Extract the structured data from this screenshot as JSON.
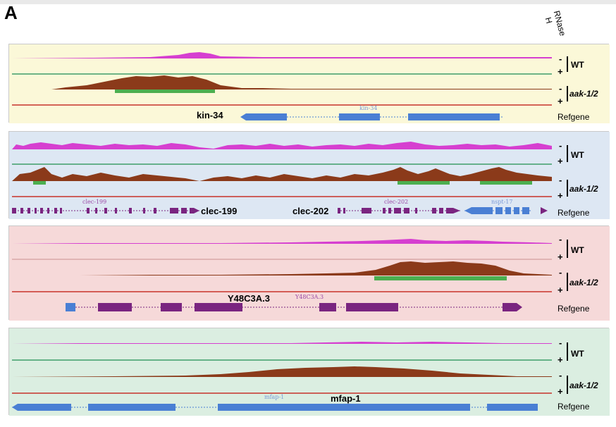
{
  "figure": {
    "panel_letter": "A",
    "column_header": "RNase H",
    "column_header_lines": [
      "RNase",
      "H"
    ],
    "colors": {
      "signal_magenta": "#d63fd0",
      "signal_green": "#3f9d6a",
      "signal_brown": "#8b3a1a",
      "signal_red": "#c8322a",
      "peak_green": "#4caf50",
      "gene_blue": "#4a7fd4",
      "gene_purple": "#7a2580"
    }
  },
  "row_labels": {
    "wt": "WT",
    "mutant": "aak-1/2",
    "minus": "-",
    "plus": "+",
    "refgene": "Refgene"
  },
  "panels": [
    {
      "id": "kin-34",
      "background": "#fbf8d8",
      "gene_labels": [
        {
          "text": "kin-34",
          "bold": true
        }
      ],
      "small_labels": [
        {
          "text": "kin-34"
        }
      ]
    },
    {
      "id": "clec",
      "background": "#dde7f3",
      "gene_labels": [
        {
          "text": "clec-199",
          "bold": true
        },
        {
          "text": "clec-202",
          "bold": true
        }
      ],
      "small_labels": [
        {
          "text": "clec-199"
        },
        {
          "text": "clec-202"
        },
        {
          "text": "nspt-17"
        }
      ]
    },
    {
      "id": "y48",
      "background": "#f6d9d9",
      "gene_labels": [
        {
          "text": "Y48C3A.3",
          "bold": true
        }
      ],
      "small_labels": [
        {
          "text": "Y48C3A.3"
        }
      ]
    },
    {
      "id": "mfap",
      "background": "#dbeee1",
      "gene_labels": [
        {
          "text": "mfap-1",
          "bold": true
        }
      ],
      "small_labels": [
        {
          "text": "mfap-1"
        }
      ]
    }
  ]
}
